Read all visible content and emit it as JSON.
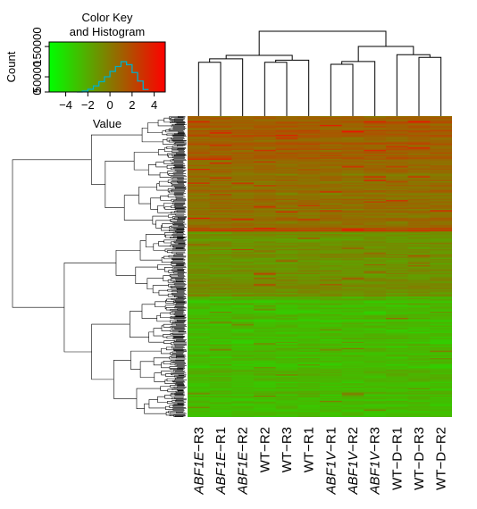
{
  "chart_data": {
    "type": "heatmap",
    "columns": [
      {
        "prefix": "ABF1E",
        "suffix": "−R3",
        "italic_prefix": true
      },
      {
        "prefix": "ABF1E",
        "suffix": "−R1",
        "italic_prefix": true
      },
      {
        "prefix": "ABF1E",
        "suffix": "−R2",
        "italic_prefix": true
      },
      {
        "prefix": "WT",
        "suffix": "−R2",
        "italic_prefix": false
      },
      {
        "prefix": "WT",
        "suffix": "−R3",
        "italic_prefix": false
      },
      {
        "prefix": "WT",
        "suffix": "−R1",
        "italic_prefix": false
      },
      {
        "prefix": "ABF1V",
        "suffix": "−R1",
        "italic_prefix": true
      },
      {
        "prefix": "ABF1V",
        "suffix": "−R2",
        "italic_prefix": true
      },
      {
        "prefix": "ABF1V",
        "suffix": "−R3",
        "italic_prefix": true
      },
      {
        "prefix": "WT",
        "suffix": "−D−R1",
        "italic_prefix": false
      },
      {
        "prefix": "WT",
        "suffix": "−D−R3",
        "italic_prefix": false
      },
      {
        "prefix": "WT",
        "suffix": "−D−R2",
        "italic_prefix": false
      }
    ],
    "color_scale": {
      "low": "#00ff00",
      "mid": "#808000",
      "high": "#ff0000",
      "range": [
        -5,
        5
      ]
    },
    "row_profile_top_to_bottom": [
      {
        "from": 0.0,
        "to": 0.15,
        "value": 1.3
      },
      {
        "from": 0.15,
        "to": 0.37,
        "value": 0.6
      },
      {
        "from": 0.37,
        "to": 0.385,
        "value": 2.2
      },
      {
        "from": 0.385,
        "to": 0.6,
        "value": -0.6
      },
      {
        "from": 0.6,
        "to": 1.0,
        "value": -2.2
      }
    ],
    "column_dendrogram": [
      {
        "left": 0,
        "right": 1,
        "height": 0.55
      },
      {
        "left": 12,
        "right": 2,
        "height": 0.6
      },
      {
        "left": 3,
        "right": 4,
        "height": 0.55
      },
      {
        "left": 14,
        "right": 5,
        "height": 0.58
      },
      {
        "left": 13,
        "right": 15,
        "height": 0.65
      },
      {
        "left": 6,
        "right": 7,
        "height": 0.52
      },
      {
        "left": 17,
        "right": 8,
        "height": 0.56
      },
      {
        "left": 10,
        "right": 11,
        "height": 0.62
      },
      {
        "left": 9,
        "right": 19,
        "height": 0.66
      },
      {
        "left": 18,
        "right": 20,
        "height": 0.78
      },
      {
        "left": 16,
        "right": 21,
        "height": 1.0
      }
    ],
    "color_key": {
      "title": "Color Key",
      "subtitle": "and Histogram",
      "ylabel": "Count",
      "xlabel": "Value",
      "xticks": [
        -4,
        -2,
        0,
        2,
        4
      ],
      "yticks": [
        0,
        50000,
        150000
      ],
      "xlim": [
        -5.5,
        5
      ],
      "ylim": [
        0,
        165000
      ],
      "histogram": {
        "bins": [
          -3,
          -2.5,
          -2,
          -1.5,
          -1,
          -0.5,
          0,
          0.5,
          1,
          1.5,
          2,
          2.5,
          3,
          3.5
        ],
        "counts": [
          0,
          3000,
          9000,
          20000,
          34000,
          50000,
          68000,
          84000,
          100000,
          90000,
          64000,
          36000,
          8000
        ]
      }
    }
  }
}
